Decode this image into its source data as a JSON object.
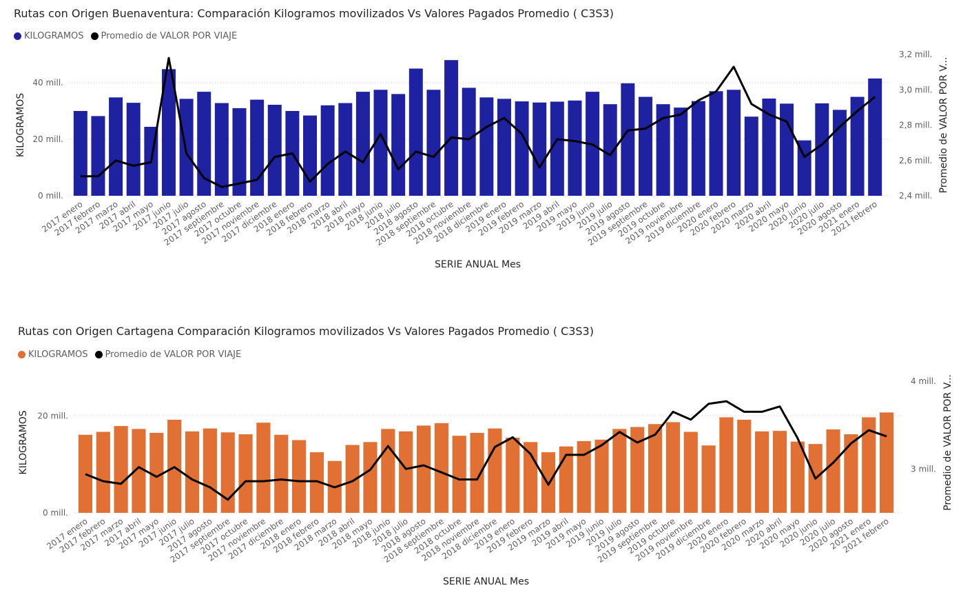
{
  "chart_data": [
    {
      "type": "bar",
      "title": "Rutas con Origen Buenaventura: Comparación Kilogramos movilizados Vs Valores Pagados Promedio ( C3S3)",
      "xlabel": "SERIE ANUAL Mes",
      "ylabel": "KILOGRAMOS",
      "y2label": "Promedio de VALOR POR V...",
      "legend_position": "top-left",
      "grid": true,
      "bar_color": "#1F22A0",
      "line_color": "#000000",
      "categories": [
        "2017 enero",
        "2017 febrero",
        "2017 marzo",
        "2017 abril",
        "2017 mayo",
        "2017 junio",
        "2017 julio",
        "2017 agosto",
        "2017 septiembre",
        "2017 octubre",
        "2017 noviembre",
        "2017 diciembre",
        "2018 enero",
        "2018 febrero",
        "2018 marzo",
        "2018 abril",
        "2018 mayo",
        "2018 junio",
        "2018 julio",
        "2018 agosto",
        "2018 septiembre",
        "2018 octubre",
        "2018 noviembre",
        "2018 diciembre",
        "2019 enero",
        "2019 febrero",
        "2019 marzo",
        "2019 abril",
        "2019 mayo",
        "2019 junio",
        "2019 julio",
        "2019 agosto",
        "2019 septiembre",
        "2019 octubre",
        "2019 noviembre",
        "2019 diciembre",
        "2020 enero",
        "2020 febrero",
        "2020 marzo",
        "2020 abril",
        "2020 mayo",
        "2020 junio",
        "2020 julio",
        "2020 agosto",
        "2021 enero",
        "2021 febrero"
      ],
      "ylim": [
        0,
        50000000
      ],
      "y_ticks": [
        0,
        20000000,
        40000000
      ],
      "y_tick_labels": [
        "0 mill.",
        "20 mill.",
        "40 mill."
      ],
      "y2lim": [
        2400000,
        3200000
      ],
      "y2_ticks": [
        2400000,
        2600000,
        2800000,
        3000000,
        3200000
      ],
      "y2_tick_labels": [
        "2,4 mill.",
        "2,6 mill.",
        "2,8 mill.",
        "3,0 mill.",
        "3,2 mill."
      ],
      "series": [
        {
          "name": "KILOGRAMOS",
          "kind": "bar",
          "values": [
            30000000,
            28200000,
            34800000,
            32900000,
            24400000,
            44800000,
            34300000,
            36800000,
            32800000,
            31000000,
            34000000,
            32200000,
            30000000,
            28400000,
            32000000,
            32800000,
            36800000,
            37500000,
            36000000,
            45000000,
            37500000,
            48000000,
            38200000,
            34800000,
            34300000,
            33400000,
            33000000,
            33300000,
            33700000,
            36800000,
            32400000,
            39800000,
            35000000,
            32400000,
            31200000,
            33500000,
            37000000,
            37500000,
            28000000,
            34400000,
            32600000,
            19600000,
            32700000,
            30400000,
            35000000,
            41500000
          ]
        },
        {
          "name": "Promedio de VALOR POR VIAJE",
          "kind": "line",
          "values": [
            2510000,
            2510000,
            2600000,
            2570000,
            2590000,
            3180000,
            2640000,
            2500000,
            2450000,
            2470000,
            2490000,
            2620000,
            2640000,
            2480000,
            2580000,
            2650000,
            2590000,
            2750000,
            2550000,
            2650000,
            2620000,
            2730000,
            2720000,
            2790000,
            2840000,
            2750000,
            2560000,
            2720000,
            2710000,
            2690000,
            2630000,
            2770000,
            2780000,
            2840000,
            2860000,
            2940000,
            2990000,
            3130000,
            2920000,
            2860000,
            2820000,
            2620000,
            2690000,
            2790000,
            2880000,
            2960000
          ]
        }
      ]
    },
    {
      "type": "bar",
      "title": "Rutas con Origen Cartagena Comparación Kilogramos movilizados Vs Valores Pagados Promedio ( C3S3)",
      "xlabel": "SERIE ANUAL Mes",
      "ylabel": "KILOGRAMOS",
      "y2label": "Promedio de VALOR POR V...",
      "legend_position": "top-left",
      "grid": true,
      "bar_color": "#E07033",
      "line_color": "#000000",
      "categories": [
        "2017 enero",
        "2017 febrero",
        "2017 marzo",
        "2017 abril",
        "2017 mayo",
        "2017 junio",
        "2017 julio",
        "2017 agosto",
        "2017 septiembre",
        "2017 octubre",
        "2017 noviembre",
        "2017 diciembre",
        "2018 enero",
        "2018 febrero",
        "2018 marzo",
        "2018 abril",
        "2018 mayo",
        "2018 junio",
        "2018 julio",
        "2018 agosto",
        "2018 septiembre",
        "2018 octubre",
        "2018 noviembre",
        "2018 diciembre",
        "2019 enero",
        "2019 febrero",
        "2019 marzo",
        "2019 abril",
        "2019 mayo",
        "2019 junio",
        "2019 julio",
        "2019 agosto",
        "2019 septiembre",
        "2019 octubre",
        "2019 noviembre",
        "2019 diciembre",
        "2020 enero",
        "2020 febrero",
        "2020 marzo",
        "2020 abril",
        "2020 mayo",
        "2020 junio",
        "2020 julio",
        "2020 agosto",
        "2021 enero",
        "2021 febrero"
      ],
      "ylim": [
        0,
        29000000
      ],
      "y_ticks": [
        0,
        20000000
      ],
      "y_tick_labels": [
        "0 mill.",
        "20 mill."
      ],
      "y2lim": [
        2500000,
        4100000
      ],
      "y2_ticks": [
        3000000,
        4000000
      ],
      "y2_tick_labels": [
        "3 mill.",
        "4 mill."
      ],
      "series": [
        {
          "name": "KILOGRAMOS",
          "kind": "bar",
          "values": [
            16100000,
            16700000,
            17900000,
            17300000,
            16500000,
            19200000,
            16800000,
            17400000,
            16600000,
            16200000,
            18600000,
            16100000,
            15000000,
            12500000,
            10700000,
            14000000,
            14600000,
            17300000,
            16800000,
            18000000,
            18500000,
            15900000,
            16500000,
            17400000,
            15500000,
            14600000,
            12500000,
            13700000,
            14800000,
            15100000,
            17300000,
            17700000,
            18300000,
            18700000,
            16700000,
            13900000,
            19700000,
            19200000,
            16800000,
            16900000,
            14700000,
            14200000,
            17200000,
            16200000,
            19700000,
            20700000
          ]
        },
        {
          "name": "Promedio de VALOR POR VIAJE",
          "kind": "line",
          "values": [
            2940000,
            2860000,
            2830000,
            3020000,
            2910000,
            3020000,
            2880000,
            2790000,
            2650000,
            2860000,
            2860000,
            2880000,
            2860000,
            2860000,
            2790000,
            2860000,
            2990000,
            3260000,
            3000000,
            3040000,
            2960000,
            2880000,
            2880000,
            3250000,
            3360000,
            3170000,
            2820000,
            3160000,
            3160000,
            3270000,
            3420000,
            3300000,
            3390000,
            3650000,
            3560000,
            3740000,
            3770000,
            3650000,
            3650000,
            3710000,
            3350000,
            2890000,
            3070000,
            3290000,
            3440000,
            3370000
          ]
        }
      ]
    }
  ]
}
